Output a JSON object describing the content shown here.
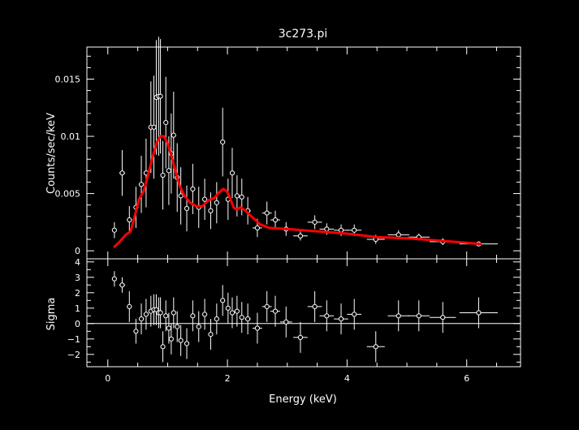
{
  "chart_data": [
    {
      "type": "scatter",
      "title": "3c273.pi",
      "xlabel": "",
      "ylabel": "Counts/sec/keV",
      "xlim": [
        -0.35,
        6.9
      ],
      "ylim": [
        -0.0007,
        0.0178
      ],
      "yticks": [
        0,
        0.005,
        0.01,
        0.015
      ],
      "ytick_labels": [
        "0",
        "0.005",
        "0.01",
        "0.015"
      ],
      "colors": {
        "data": "#ffffff",
        "model": "#ff0000",
        "background": "#000000"
      },
      "series": [
        {
          "x": [
            0.11,
            0.24,
            0.36,
            0.47,
            0.56,
            0.64,
            0.72,
            0.77,
            0.81,
            0.85,
            0.88,
            0.92,
            0.97,
            1.02,
            1.06,
            1.1,
            1.16,
            1.22,
            1.32,
            1.42,
            1.52,
            1.62,
            1.72,
            1.82,
            1.92,
            2.01,
            2.08,
            2.16,
            2.24,
            2.34,
            2.5,
            2.66,
            2.8,
            2.98,
            3.22,
            3.46,
            3.66,
            3.9,
            4.12,
            4.48,
            4.86,
            5.2,
            5.6,
            6.2
          ],
          "y": [
            0.0018,
            0.0068,
            0.0027,
            0.0038,
            0.0058,
            0.0068,
            0.0108,
            0.0108,
            0.0134,
            0.0135,
            0.0135,
            0.0066,
            0.0112,
            0.007,
            0.0085,
            0.0101,
            0.0064,
            0.0048,
            0.0037,
            0.0054,
            0.0038,
            0.0045,
            0.0035,
            0.0042,
            0.0095,
            0.0045,
            0.0068,
            0.0048,
            0.0047,
            0.0035,
            0.002,
            0.0033,
            0.0027,
            0.0019,
            0.0013,
            0.0025,
            0.0019,
            0.0018,
            0.0018,
            0.001,
            0.0014,
            0.0012,
            0.0008,
            0.0006
          ],
          "yerr": [
            0.0007,
            0.002,
            0.0012,
            0.0018,
            0.0025,
            0.003,
            0.004,
            0.0045,
            0.005,
            0.0052,
            0.005,
            0.003,
            0.004,
            0.003,
            0.0035,
            0.0038,
            0.003,
            0.0025,
            0.002,
            0.0022,
            0.0018,
            0.0018,
            0.0016,
            0.0018,
            0.003,
            0.0018,
            0.0022,
            0.0018,
            0.0016,
            0.0012,
            0.0008,
            0.001,
            0.0008,
            0.0006,
            0.0004,
            0.0006,
            0.0005,
            0.0005,
            0.0005,
            0.0004,
            0.0004,
            0.0003,
            0.0003,
            0.0002
          ],
          "xerr": [
            0.04,
            0.05,
            0.04,
            0.04,
            0.04,
            0.03,
            0.03,
            0.02,
            0.02,
            0.02,
            0.02,
            0.02,
            0.02,
            0.02,
            0.02,
            0.02,
            0.03,
            0.03,
            0.04,
            0.04,
            0.04,
            0.04,
            0.04,
            0.04,
            0.04,
            0.04,
            0.03,
            0.04,
            0.04,
            0.05,
            0.08,
            0.08,
            0.08,
            0.1,
            0.12,
            0.12,
            0.12,
            0.12,
            0.12,
            0.15,
            0.18,
            0.18,
            0.22,
            0.32
          ]
        },
        {
          "x": [
            0.1,
            0.2,
            0.3,
            0.38,
            0.45,
            0.52,
            0.6,
            0.68,
            0.75,
            0.82,
            0.88,
            0.94,
            1.0,
            1.05,
            1.1,
            1.15,
            1.2,
            1.28,
            1.38,
            1.48,
            1.58,
            1.68,
            1.78,
            1.86,
            1.93,
            1.99,
            2.05,
            2.1,
            2.15,
            2.22,
            2.3,
            2.4,
            2.55,
            2.7,
            3.0,
            3.5,
            4.0,
            4.5,
            5.0,
            5.5,
            6.0,
            6.25
          ],
          "y": [
            0.0003,
            0.0008,
            0.0014,
            0.0017,
            0.003,
            0.0045,
            0.0052,
            0.0068,
            0.0082,
            0.0095,
            0.01,
            0.01,
            0.0094,
            0.0085,
            0.0076,
            0.0066,
            0.0057,
            0.0048,
            0.0042,
            0.0039,
            0.0039,
            0.0044,
            0.0046,
            0.0051,
            0.0054,
            0.0052,
            0.0045,
            0.0038,
            0.0036,
            0.0038,
            0.0035,
            0.003,
            0.0023,
            0.002,
            0.0019,
            0.0017,
            0.0015,
            0.0012,
            0.0011,
            0.0009,
            0.0007,
            0.0006
          ]
        }
      ]
    },
    {
      "type": "scatter",
      "title": "",
      "xlabel": "Energy (keV)",
      "ylabel": "Sigma",
      "xlim": [
        -0.35,
        6.9
      ],
      "ylim": [
        -2.8,
        4.2
      ],
      "xticks": [
        0,
        2,
        4,
        6
      ],
      "xtick_labels": [
        "0",
        "2",
        "4",
        "6"
      ],
      "yticks": [
        -2,
        -1,
        0,
        1,
        2,
        3,
        4
      ],
      "ytick_labels": [
        "−2",
        "−1",
        "0",
        "1",
        "2",
        "3",
        "4"
      ],
      "zero_line": 0,
      "series": [
        {
          "x": [
            0.11,
            0.24,
            0.36,
            0.47,
            0.56,
            0.64,
            0.72,
            0.77,
            0.81,
            0.85,
            0.88,
            0.92,
            0.97,
            1.02,
            1.06,
            1.1,
            1.16,
            1.22,
            1.32,
            1.42,
            1.52,
            1.62,
            1.72,
            1.82,
            1.92,
            2.01,
            2.08,
            2.16,
            2.24,
            2.34,
            2.5,
            2.66,
            2.8,
            2.98,
            3.22,
            3.46,
            3.66,
            3.9,
            4.12,
            4.48,
            4.86,
            5.2,
            5.6,
            6.2
          ],
          "y": [
            2.9,
            2.5,
            1.1,
            -0.5,
            0.3,
            0.6,
            0.8,
            0.9,
            0.9,
            0.7,
            0.7,
            -1.5,
            0.5,
            -0.3,
            -1.0,
            0.7,
            -0.2,
            -1.1,
            -1.3,
            0.5,
            -0.2,
            0.6,
            -0.7,
            0.3,
            1.5,
            1.0,
            0.7,
            0.8,
            0.4,
            0.3,
            -0.3,
            1.1,
            0.8,
            0.1,
            -0.9,
            1.1,
            0.5,
            0.3,
            0.6,
            -1.5,
            0.5,
            0.5,
            0.4,
            0.7
          ],
          "yerr": [
            0.5,
            0.5,
            1.0,
            0.8,
            1.0,
            1.0,
            1.0,
            1.0,
            1.0,
            1.0,
            1.0,
            1.0,
            1.0,
            1.0,
            1.0,
            1.0,
            1.0,
            1.0,
            1.0,
            1.0,
            1.0,
            1.0,
            1.0,
            1.0,
            1.0,
            1.0,
            1.0,
            1.0,
            1.0,
            1.0,
            1.0,
            1.0,
            1.0,
            1.0,
            1.0,
            1.0,
            1.0,
            1.0,
            1.0,
            1.0,
            1.0,
            1.0,
            1.0,
            1.0
          ],
          "xerr": [
            0.04,
            0.05,
            0.04,
            0.04,
            0.04,
            0.03,
            0.03,
            0.02,
            0.02,
            0.02,
            0.02,
            0.02,
            0.02,
            0.02,
            0.02,
            0.02,
            0.03,
            0.03,
            0.04,
            0.04,
            0.04,
            0.04,
            0.04,
            0.04,
            0.04,
            0.04,
            0.03,
            0.04,
            0.04,
            0.05,
            0.08,
            0.08,
            0.08,
            0.1,
            0.12,
            0.12,
            0.12,
            0.12,
            0.12,
            0.15,
            0.18,
            0.18,
            0.22,
            0.32
          ]
        }
      ]
    }
  ]
}
